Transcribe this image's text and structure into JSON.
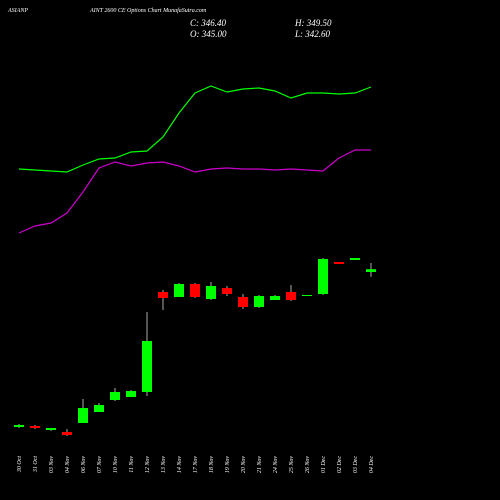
{
  "chart_data": {
    "type": "candlestick",
    "title": "ASIANP",
    "subtitle": "AINT 2600  CE Options Chart MunafaSutra.com",
    "ohlc_text": [
      "C: 346.40",
      "H: 349.50",
      "O: 345.00",
      "L: 342.60"
    ],
    "categories": [
      "30 Oct",
      "31 Oct",
      "03 Nov",
      "04 Nov",
      "06 Nov",
      "07 Nov",
      "10 Nov",
      "11 Nov",
      "12 Nov",
      "13 Nov",
      "14 Nov",
      "17 Nov",
      "18 Nov",
      "19 Nov",
      "20 Nov",
      "21 Nov",
      "24 Nov",
      "25 Nov",
      "26 Nov",
      "01 Dec",
      "02 Dec",
      "03 Dec",
      "04 Dec"
    ],
    "open": [
      267.5,
      268,
      266,
      265,
      269.5,
      275,
      281,
      282.5,
      285,
      335,
      332.5,
      339,
      331.5,
      337,
      332.5,
      327.5,
      331,
      335,
      333,
      334,
      350,
      351,
      345
    ],
    "high": [
      269,
      268.5,
      267,
      266.5,
      281.5,
      279.5,
      287,
      286,
      325,
      336,
      339.5,
      339.5,
      340,
      338,
      334,
      333.5,
      333.5,
      338.5,
      333.5,
      352,
      350,
      351.5,
      349.5
    ],
    "low": [
      267,
      266.5,
      265.5,
      263,
      269.5,
      275,
      280.5,
      282.5,
      283,
      326,
      332.5,
      332,
      331,
      333,
      326.5,
      327,
      331,
      330.5,
      333,
      333.5,
      349,
      351,
      342.6
    ],
    "close": [
      268.5,
      267,
      267,
      263.5,
      277,
      278.5,
      285,
      285.5,
      310.5,
      332,
      339,
      332.5,
      338,
      334,
      327.5,
      333,
      333,
      331,
      333.5,
      351.5,
      349,
      352,
      346.4
    ],
    "up_color": "#00ff00",
    "down_color": "#ff0000",
    "lines": [
      {
        "color": "#00ff00",
        "values": [
          396.5,
          396,
          395.5,
          395,
          398.5,
          401.5,
          402,
          405,
          405.5,
          412.5,
          424.5,
          434.5,
          438,
          435,
          436.5,
          437,
          435.5,
          432,
          434.5,
          434.5,
          434,
          434.5,
          437.5
        ]
      },
      {
        "color": "#cc00cc",
        "values": [
          364.5,
          368,
          369.5,
          374.5,
          385,
          397,
          400,
          398,
          399.5,
          400,
          398,
          395,
          396.5,
          397,
          396.5,
          396.5,
          396,
          396.5,
          396,
          395.5,
          402,
          406,
          406
        ]
      }
    ],
    "ylim": [
      231,
      481
    ]
  }
}
